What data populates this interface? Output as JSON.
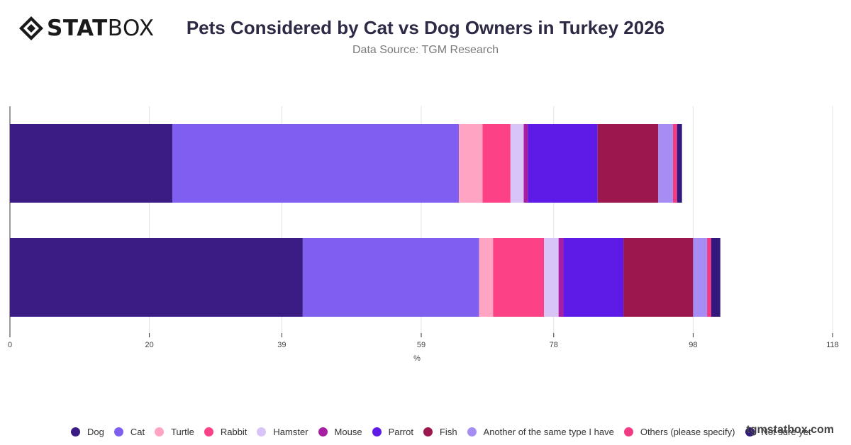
{
  "header": {
    "logo_bold": "STAT",
    "logo_light": "BOX",
    "title": "Pets Considered by Cat vs Dog Owners in Turkey 2026",
    "subtitle": "Data Source: TGM Research"
  },
  "watermark": "tgmstatbox.com",
  "chart_data": {
    "type": "bar",
    "orientation": "horizontal",
    "stacked": true,
    "title": "Pets Considered by Cat vs Dog Owners in Turkey 2026",
    "xlabel": "%",
    "xlim": [
      0,
      118
    ],
    "x_ticks": [
      0,
      20,
      39,
      59,
      78,
      98,
      118
    ],
    "grid": true,
    "legend_position": "bottom",
    "categories": [
      "",
      ""
    ],
    "series": [
      {
        "name": "Dog",
        "color": "#3a1c84",
        "values": [
          23.3,
          42
        ]
      },
      {
        "name": "Cat",
        "color": "#7e5ff0",
        "values": [
          41.1,
          25.3
        ]
      },
      {
        "name": "Turtle",
        "color": "#ffa4c3",
        "values": [
          3.4,
          2
        ]
      },
      {
        "name": "Rabbit",
        "color": "#fd4186",
        "values": [
          4,
          7.3
        ]
      },
      {
        "name": "Hamster",
        "color": "#d8c4f7",
        "values": [
          1.9,
          2.1
        ]
      },
      {
        "name": "Mouse",
        "color": "#a71fa0",
        "values": [
          0.6,
          0.7
        ]
      },
      {
        "name": "Parrot",
        "color": "#5e1ae6",
        "values": [
          10,
          8.6
        ]
      },
      {
        "name": "Fish",
        "color": "#9b174d",
        "values": [
          8.7,
          10
        ]
      },
      {
        "name": "Another of the same type I have",
        "color": "#a58df3",
        "values": [
          2.1,
          2
        ]
      },
      {
        "name": "Others (please specify)",
        "color": "#f23b82",
        "values": [
          0.6,
          0.6
        ]
      },
      {
        "name": "Not sure yet",
        "color": "#33187d",
        "values": [
          0.7,
          1.3
        ]
      }
    ]
  }
}
